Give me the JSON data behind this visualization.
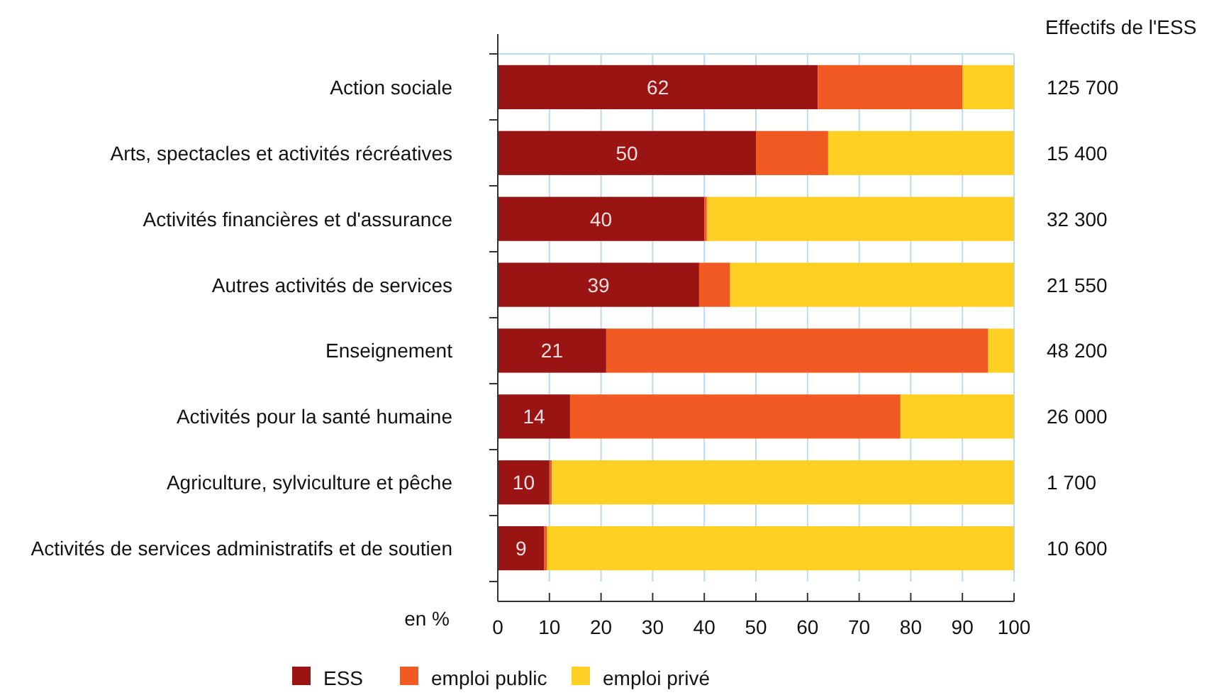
{
  "chart_data": {
    "type": "bar",
    "orientation": "horizontal",
    "stacked": true,
    "categories": [
      "Action sociale",
      "Arts, spectacles et activités récréatives",
      "Activités financières et d'assurance",
      "Autres activités de services",
      "Enseignement",
      "Activités pour la santé humaine",
      "Agriculture, sylviculture et pêche",
      "Activités de services administratifs et de soutien"
    ],
    "series": [
      {
        "name": "ESS",
        "color": "#9b1414",
        "values": [
          62,
          50,
          40,
          39,
          21,
          14,
          10,
          9
        ],
        "value_labels": [
          "62",
          "50",
          "40",
          "39",
          "21",
          "14",
          "10",
          "9"
        ]
      },
      {
        "name": "emploi public",
        "color": "#f15a22",
        "values": [
          28,
          14,
          0.5,
          6,
          74,
          64,
          0.5,
          0.5
        ]
      },
      {
        "name": "emploi privé",
        "color": "#fed023",
        "values": [
          10,
          36,
          59.5,
          55,
          5,
          22,
          89.5,
          90.5
        ]
      }
    ],
    "xlabel": "en %",
    "xlim": [
      0,
      100
    ],
    "xticks": [
      0,
      10,
      20,
      30,
      40,
      50,
      60,
      70,
      80,
      90,
      100
    ],
    "grid": "x",
    "legend": "bottom",
    "annotations": [
      "Effectifs de l'ESS",
      "125 700",
      "15 400",
      "32 300",
      "21 550",
      "48 200",
      "26 000",
      "1 700",
      "10 600"
    ]
  }
}
